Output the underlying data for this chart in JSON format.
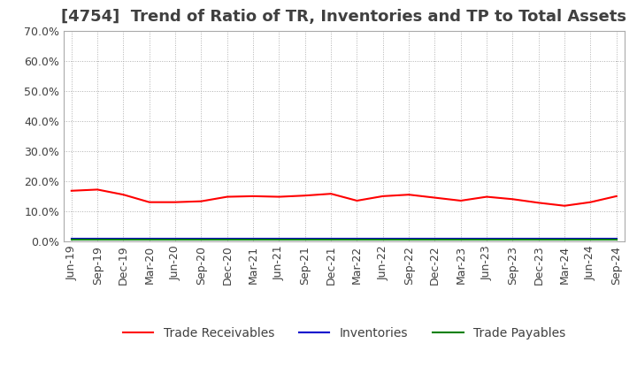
{
  "title": "[4754]  Trend of Ratio of TR, Inventories and TP to Total Assets",
  "title_color": "#404040",
  "background_color": "#ffffff",
  "grid_color": "#b0b0b0",
  "ylim": [
    0.0,
    0.7
  ],
  "yticks": [
    0.0,
    0.1,
    0.2,
    0.3,
    0.4,
    0.5,
    0.6,
    0.7
  ],
  "x_labels": [
    "Jun-19",
    "Sep-19",
    "Dec-19",
    "Mar-20",
    "Jun-20",
    "Sep-20",
    "Dec-20",
    "Mar-21",
    "Jun-21",
    "Sep-21",
    "Dec-21",
    "Mar-22",
    "Jun-22",
    "Sep-22",
    "Dec-22",
    "Mar-23",
    "Jun-23",
    "Sep-23",
    "Dec-23",
    "Mar-24",
    "Jun-24",
    "Sep-24"
  ],
  "trade_receivables": [
    0.168,
    0.172,
    0.155,
    0.13,
    0.13,
    0.133,
    0.148,
    0.15,
    0.148,
    0.152,
    0.158,
    0.135,
    0.15,
    0.155,
    0.145,
    0.135,
    0.148,
    0.14,
    0.128,
    0.118,
    0.13,
    0.15
  ],
  "inventories": [
    0.008,
    0.008,
    0.008,
    0.008,
    0.008,
    0.008,
    0.008,
    0.008,
    0.008,
    0.008,
    0.008,
    0.008,
    0.008,
    0.008,
    0.008,
    0.008,
    0.008,
    0.008,
    0.008,
    0.008,
    0.008,
    0.008
  ],
  "trade_payables": [
    0.005,
    0.005,
    0.005,
    0.005,
    0.005,
    0.005,
    0.005,
    0.005,
    0.005,
    0.005,
    0.005,
    0.005,
    0.005,
    0.005,
    0.005,
    0.005,
    0.005,
    0.005,
    0.005,
    0.005,
    0.005,
    0.005
  ],
  "tr_color": "#ff0000",
  "inv_color": "#0000cd",
  "tp_color": "#008000",
  "tr_label": "Trade Receivables",
  "inv_label": "Inventories",
  "tp_label": "Trade Payables",
  "legend_fontsize": 10,
  "title_fontsize": 13,
  "tick_fontsize": 9
}
